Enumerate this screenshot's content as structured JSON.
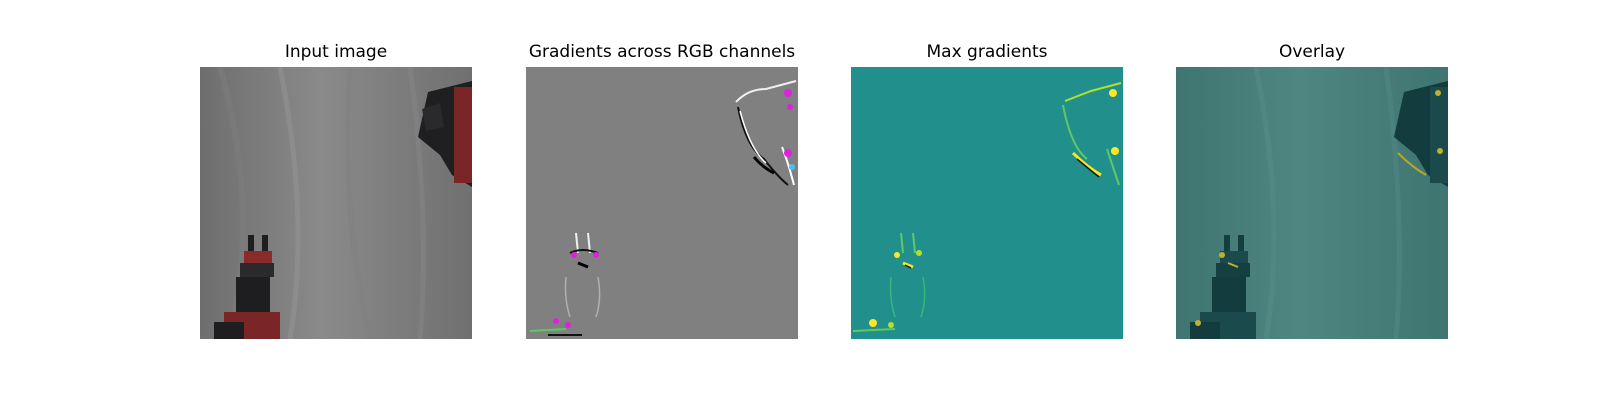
{
  "figure": {
    "panels": [
      {
        "title": "Input image"
      },
      {
        "title": "Gradients across RGB channels"
      },
      {
        "title": "Max gradients"
      },
      {
        "title": "Overlay"
      }
    ]
  },
  "colors": {
    "input_background": "#757575",
    "rgb_gradient_background": "#808080",
    "max_gradient_background": "#21908d",
    "overlay_background": "#467a76",
    "robot_red": "#8a2a2a",
    "robot_dark": "#1e1e20",
    "gradient_magenta": "#e020e0",
    "gradient_yellow": "#fde725",
    "gradient_green": "#5ec962"
  }
}
